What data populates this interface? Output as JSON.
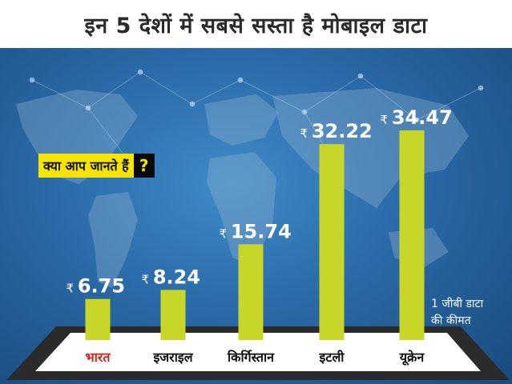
{
  "header": {
    "title": "इन 5 देशों में सबसे सस्ता है मोबाइल डाटा"
  },
  "callout": {
    "text": "क्या आप जानते हैं",
    "mark": "?"
  },
  "note": "1 जीबी डाटा की कीमत",
  "colors": {
    "bar": "#c8d62a",
    "value": "#ffffff",
    "label": "#111111",
    "highlight_label": "#d21f1f",
    "phone": "#2b2b2b"
  },
  "chart_data": {
    "type": "bar",
    "title": "इन 5 देशों में सबसे सस्ता है मोबाइल डाटा",
    "currency_symbol": "₹",
    "categories": [
      "भारत",
      "इजराइल",
      "किर्गिस्तान",
      "इटली",
      "यूक्रेन"
    ],
    "values": [
      6.75,
      8.24,
      15.74,
      32.22,
      34.47
    ],
    "value_labels": [
      "6.75",
      "8.24",
      "15.74",
      "32.22",
      "34.47"
    ],
    "highlight_category": "भारत",
    "ylim": [
      0,
      40
    ],
    "grid": false,
    "legend": "none"
  }
}
